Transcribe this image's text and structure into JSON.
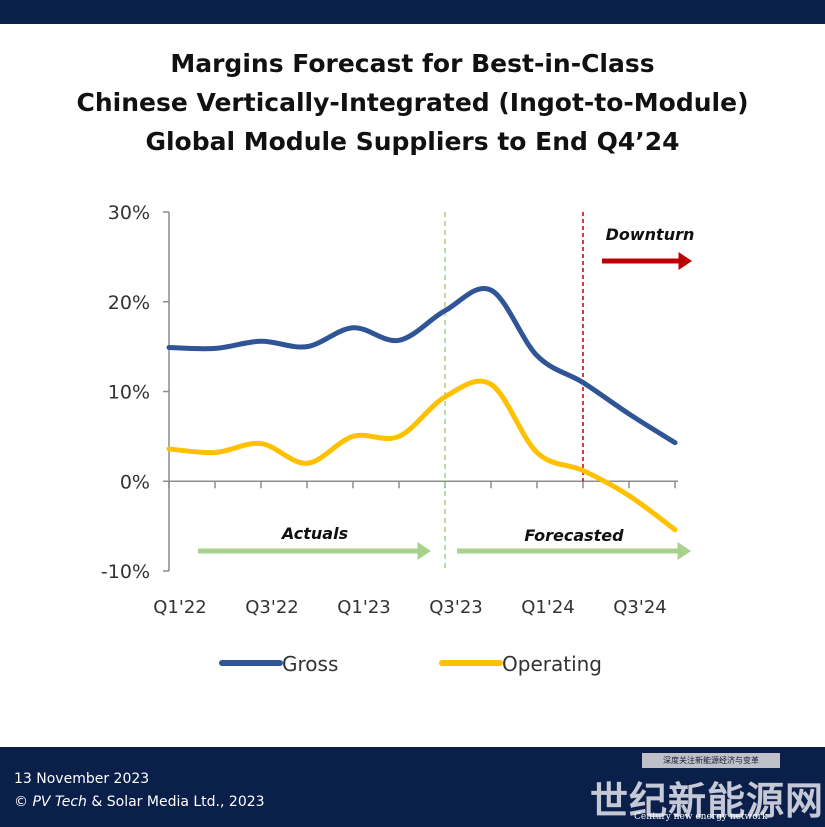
{
  "title": {
    "line1": "Margins Forecast for Best-in-Class",
    "line2": "Chinese Vertically-Integrated (Ingot-to-Module)",
    "line3": "Global Module Suppliers to End Q4’24"
  },
  "chart_data": {
    "type": "line",
    "title": "Margins Forecast for Best-in-Class Chinese Vertically-Integrated (Ingot-to-Module) Global Module Suppliers to End Q4’24",
    "x": [
      "Q1'22",
      "Q2'22",
      "Q3'22",
      "Q4'22",
      "Q1'23",
      "Q2'23",
      "Q3'23",
      "Q4'23",
      "Q1'24",
      "Q2'24",
      "Q3'24",
      "Q4'24"
    ],
    "x_tick_labels": [
      "Q1'22",
      "Q3'22",
      "Q1'23",
      "Q3'23",
      "Q1'24",
      "Q3'24"
    ],
    "ylim": [
      -10,
      30
    ],
    "y_ticks": [
      -10,
      0,
      10,
      20,
      30
    ],
    "y_tick_labels": [
      "-10%",
      "0%",
      "10%",
      "20%",
      "30%"
    ],
    "series": [
      {
        "name": "Gross",
        "color": "#2f5597",
        "values": [
          14.9,
          14.8,
          15.6,
          15.0,
          17.1,
          15.7,
          19.0,
          21.3,
          14.0,
          11.0,
          7.5,
          4.3
        ]
      },
      {
        "name": "Operating",
        "color": "#ffc000",
        "values": [
          3.6,
          3.2,
          4.2,
          2.0,
          5.0,
          5.0,
          9.4,
          10.8,
          3.2,
          1.2,
          -1.6,
          -5.4
        ]
      }
    ],
    "annotations": {
      "actuals_label": "Actuals",
      "forecast_label": "Forecasted",
      "downturn_label": "Downturn",
      "forecast_start_x": 6.0,
      "downturn_x": 9.0
    },
    "legend_position": "bottom",
    "grid": false
  },
  "footer": {
    "date": "13 November  2023",
    "copyright_prefix": "© ",
    "brand": "PV Tech",
    "copyright_suffix": " & Solar Media Ltd., 2023"
  },
  "watermark": {
    "top_text": "深度关注新能源经济与变革",
    "big_text": "世纪新能源网",
    "small_text": "Century new energy network"
  },
  "colors": {
    "navy": "#0b1f4b",
    "gross": "#2f5597",
    "operating": "#ffc000",
    "arrow_green": "#a9d18e",
    "downturn_red": "#c00000"
  }
}
